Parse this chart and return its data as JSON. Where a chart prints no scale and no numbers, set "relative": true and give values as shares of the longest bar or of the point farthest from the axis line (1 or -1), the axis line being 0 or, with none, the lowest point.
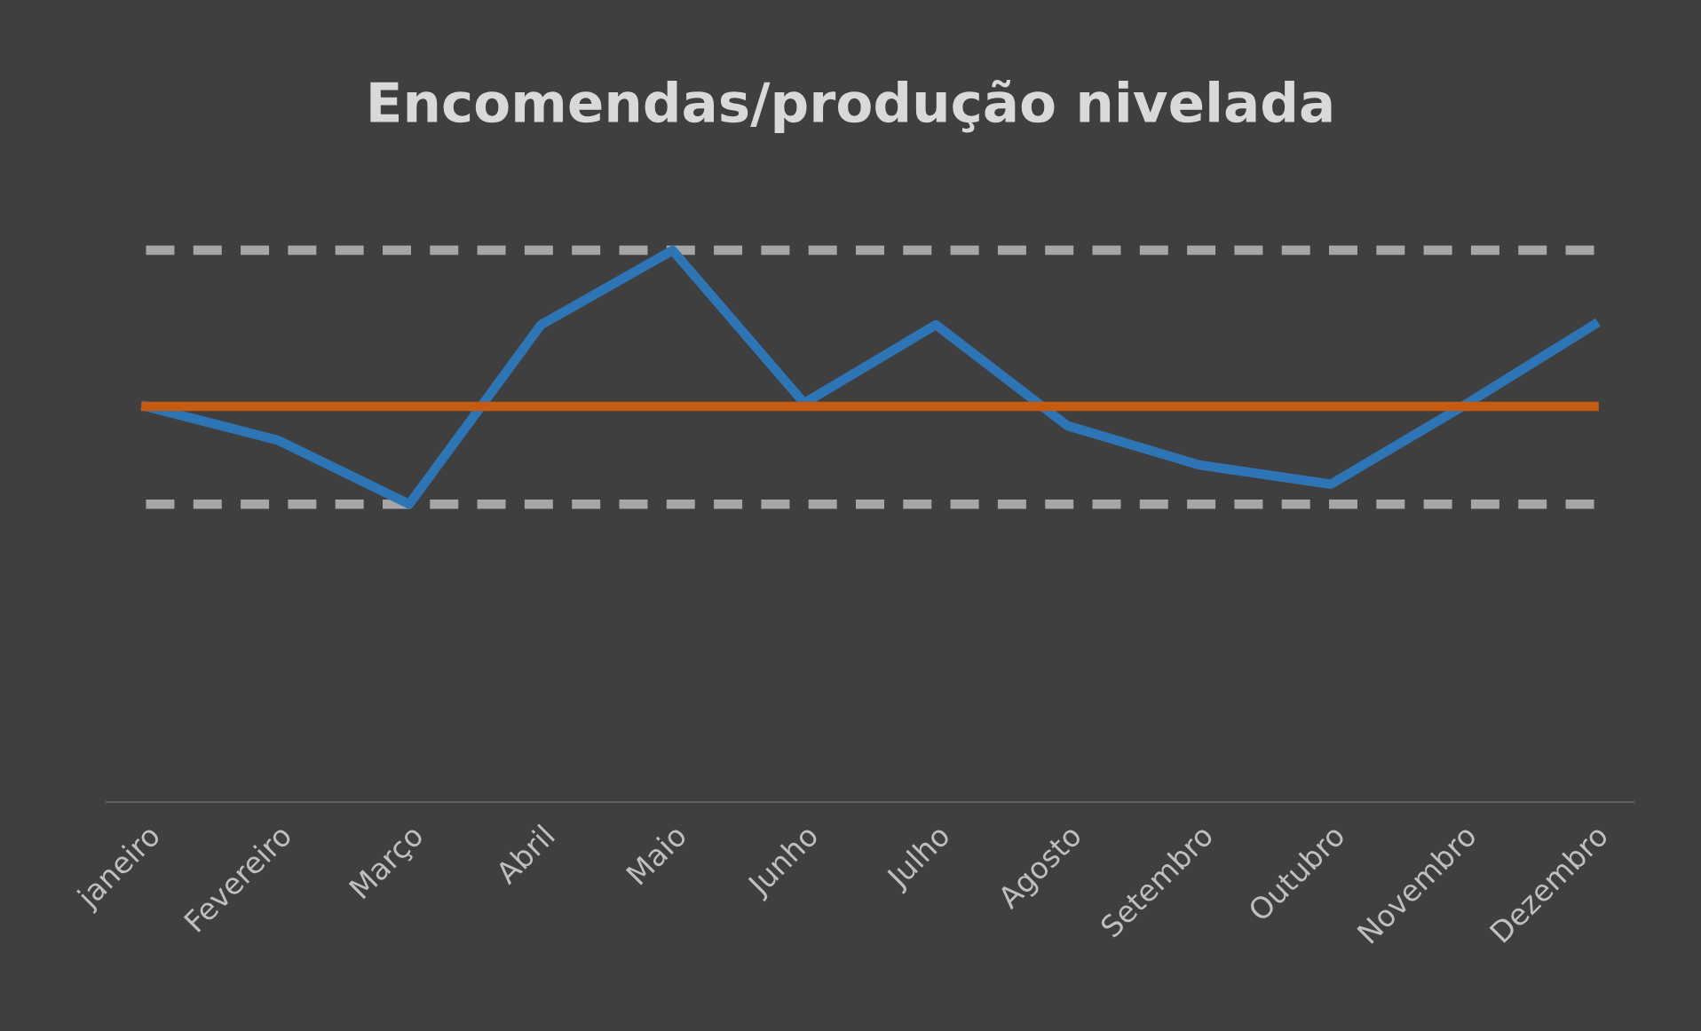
{
  "chart_data": {
    "type": "line",
    "title": "Encomendas/produção nivelada",
    "relative": true,
    "grid": false,
    "marker": "none",
    "categories": [
      "janeiro",
      "Fevereiro",
      "Março",
      "Abril",
      "Maio",
      "Junho",
      "Julho",
      "Agosto",
      "Setembro",
      "Outubro",
      "Novembro",
      "Dezembro"
    ],
    "series": [
      {
        "color": "#a6a6a6",
        "line_style": "dashed",
        "values": [
          1.0,
          1.0,
          1.0,
          1.0,
          1.0,
          1.0,
          1.0,
          1.0,
          1.0,
          1.0,
          1.0,
          1.0
        ]
      },
      {
        "color": "#a6a6a6",
        "line_style": "dashed",
        "values": [
          0.54,
          0.54,
          0.54,
          0.54,
          0.54,
          0.54,
          0.54,
          0.54,
          0.54,
          0.54,
          0.54,
          0.54
        ]
      },
      {
        "color": "#2e75b6",
        "line_style": "solid",
        "values": [
          0.717,
          0.656,
          0.54,
          0.865,
          1.0,
          0.723,
          0.865,
          0.682,
          0.611,
          0.576,
          0.717,
          0.865
        ]
      },
      {
        "color": "#c55a11",
        "line_style": "solid",
        "values": [
          0.717,
          0.717,
          0.717,
          0.717,
          0.717,
          0.717,
          0.717,
          0.717,
          0.717,
          0.717,
          0.717,
          0.717
        ]
      }
    ]
  }
}
